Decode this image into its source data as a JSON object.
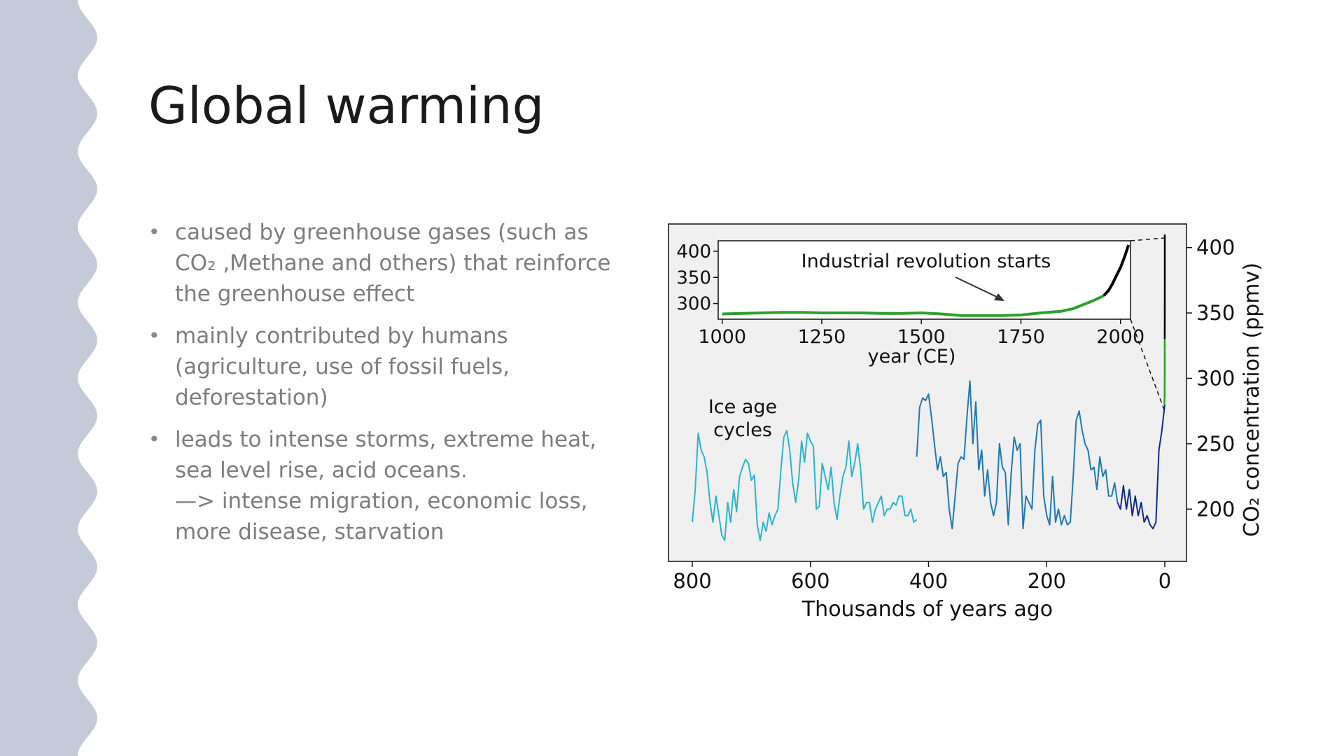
{
  "slide": {
    "title": "Global warming",
    "bullets": [
      "caused by greenhouse gases (such as CO₂ ,Methane and others) that reinforce the greenhouse effect",
      "mainly contributed by humans (agriculture, use of fossil fuels, deforestation)",
      "leads to intense storms, extreme heat, sea level rise, acid oceans.\n—> intense migration, economic loss, more disease, starvation"
    ],
    "bullet_symbol": "•"
  },
  "colors": {
    "wave": "#c5cad8",
    "title": "#1a1a1a",
    "bullet_text": "#7d7d7d",
    "chart_bg": "#f0f0f0",
    "ice_core_light": "#29b5cc",
    "ice_core_mid": "#1f78b4",
    "ice_core_dark": "#0d2a8c",
    "law_dome": "#2ca02c",
    "mauna_loa": "#000000"
  },
  "chart_data": [
    {
      "type": "line",
      "xlabel": "Thousands of years ago",
      "ylabel": "CO₂ concentration (ppmv)",
      "xlim": [
        800,
        0
      ],
      "ylim": [
        160,
        410
      ],
      "xticks": [
        800,
        600,
        400,
        200,
        0
      ],
      "yticks": [
        200,
        250,
        300,
        350,
        400
      ],
      "y_axis_side": "right",
      "annotation": "Ice age\ncycles",
      "series": [
        {
          "x": [
            800,
            795,
            790,
            785,
            780,
            775,
            770,
            765,
            760,
            755,
            750,
            745,
            740,
            735,
            730,
            725,
            720,
            715,
            710,
            705,
            700,
            695,
            690,
            685,
            680,
            675,
            670,
            665,
            660,
            655,
            650,
            645,
            640,
            635,
            630,
            625,
            620,
            615,
            610,
            605,
            600,
            595,
            590,
            585,
            580,
            575,
            570,
            565,
            560,
            555,
            550,
            545,
            540,
            535,
            530,
            525,
            520,
            515,
            510,
            505,
            500,
            495,
            490,
            485,
            480,
            475,
            470,
            465,
            460,
            455,
            450,
            445,
            440,
            435,
            430,
            425,
            420
          ],
          "y": [
            190,
            215,
            258,
            245,
            240,
            228,
            205,
            190,
            210,
            195,
            180,
            176,
            205,
            190,
            215,
            198,
            225,
            232,
            238,
            235,
            222,
            226,
            188,
            176,
            190,
            183,
            197,
            188,
            195,
            200,
            230,
            255,
            260,
            245,
            220,
            205,
            222,
            252,
            236,
            258,
            252,
            248,
            200,
            202,
            235,
            225,
            215,
            232,
            205,
            192,
            210,
            225,
            232,
            252,
            225,
            235,
            250,
            230,
            200,
            205,
            205,
            190,
            200,
            205,
            210,
            195,
            200,
            200,
            205,
            203,
            210,
            210,
            195,
            195,
            200,
            190,
            192
          ]
        },
        {
          "x": [
            420,
            415,
            410,
            405,
            400,
            395,
            390,
            385,
            380,
            375,
            370,
            365,
            360,
            355,
            350,
            345,
            340,
            335,
            330,
            325,
            320,
            315,
            310,
            305,
            300,
            295,
            290,
            285,
            280,
            275,
            270,
            265,
            260,
            255,
            250,
            245,
            240,
            235,
            230,
            225,
            220,
            215,
            210,
            205,
            200,
            195,
            190,
            185,
            180,
            175,
            170,
            165,
            160,
            155,
            150,
            145,
            140,
            135,
            130,
            125,
            120,
            115,
            110,
            105,
            100,
            95,
            90,
            85,
            80
          ],
          "y": [
            240,
            278,
            285,
            283,
            288,
            270,
            250,
            230,
            240,
            225,
            228,
            200,
            185,
            210,
            235,
            240,
            238,
            270,
            298,
            250,
            282,
            230,
            245,
            210,
            230,
            205,
            195,
            205,
            250,
            232,
            228,
            188,
            228,
            255,
            245,
            250,
            185,
            210,
            205,
            200,
            245,
            265,
            268,
            210,
            195,
            188,
            225,
            190,
            200,
            188,
            195,
            188,
            190,
            225,
            268,
            275,
            260,
            250,
            245,
            230,
            232,
            215,
            240,
            225,
            230,
            210,
            210,
            220,
            205
          ]
        },
        {
          "x": [
            80,
            75,
            70,
            65,
            60,
            55,
            50,
            45,
            40,
            35,
            30,
            25,
            20,
            15,
            10,
            5,
            0
          ],
          "y": [
            205,
            200,
            218,
            200,
            215,
            195,
            210,
            195,
            205,
            190,
            195,
            188,
            185,
            190,
            245,
            260,
            280
          ]
        },
        {
          "x": [
            1,
            0.6,
            0.3,
            0.15,
            0.1
          ],
          "y": [
            280,
            282,
            285,
            300,
            330
          ]
        },
        {
          "x": [
            0.1,
            0.05,
            0.01
          ],
          "y": [
            330,
            370,
            410
          ]
        }
      ]
    },
    {
      "type": "line",
      "inset": true,
      "xlabel": "year (CE)",
      "xlim": [
        990,
        2025
      ],
      "ylim": [
        270,
        420
      ],
      "xticks": [
        1000,
        1250,
        1500,
        1750,
        2000
      ],
      "yticks": [
        300,
        350,
        400
      ],
      "annotation": "Industrial revolution starts",
      "series": [
        {
          "x": [
            1000,
            1050,
            1100,
            1150,
            1200,
            1250,
            1300,
            1350,
            1400,
            1450,
            1500,
            1550,
            1600,
            1650,
            1700,
            1750,
            1800,
            1850,
            1880,
            1900,
            1930,
            1958
          ],
          "y": [
            280,
            281,
            282,
            283,
            283,
            282,
            282,
            282,
            281,
            281,
            282,
            280,
            277,
            277,
            277,
            278,
            282,
            285,
            290,
            296,
            305,
            315
          ]
        },
        {
          "x": [
            1958,
            1970,
            1980,
            1990,
            2000,
            2010,
            2020
          ],
          "y": [
            315,
            325,
            338,
            354,
            369,
            389,
            412
          ]
        }
      ]
    }
  ]
}
